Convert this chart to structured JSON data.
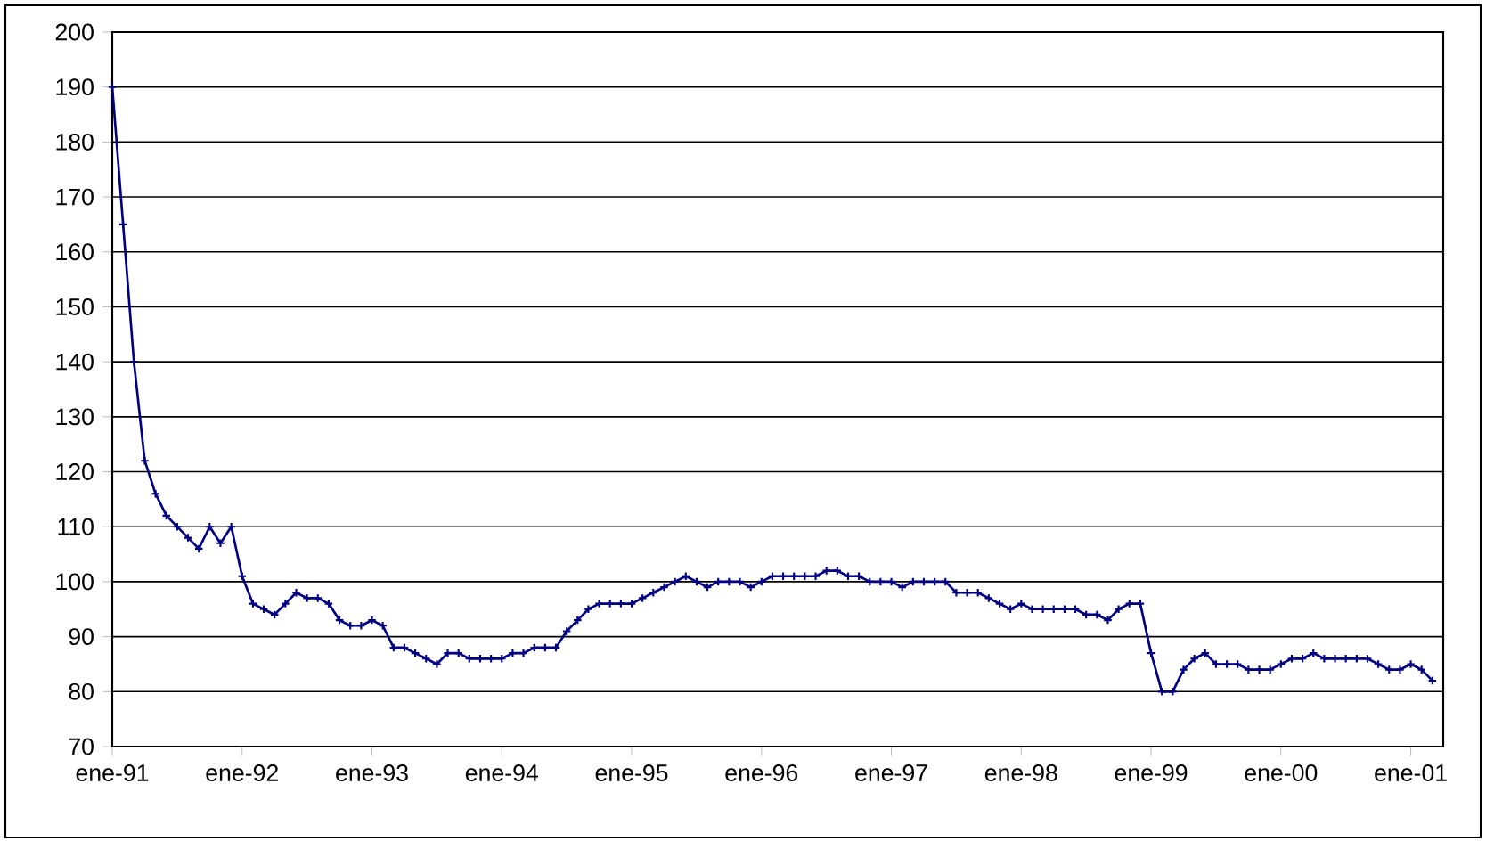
{
  "chart_data": {
    "type": "line",
    "grid": "y",
    "marker": "cross",
    "line_style": "solid",
    "xlim": [
      "1991-01",
      "2001-04"
    ],
    "ylim": [
      70,
      200
    ],
    "yticks": [
      70,
      80,
      90,
      100,
      110,
      120,
      130,
      140,
      150,
      160,
      170,
      180,
      190,
      200
    ],
    "xticks": [
      {
        "value": "1991-01",
        "label": "ene-91"
      },
      {
        "value": "1992-01",
        "label": "ene-92"
      },
      {
        "value": "1993-01",
        "label": "ene-93"
      },
      {
        "value": "1994-01",
        "label": "ene-94"
      },
      {
        "value": "1995-01",
        "label": "ene-95"
      },
      {
        "value": "1996-01",
        "label": "ene-96"
      },
      {
        "value": "1997-01",
        "label": "ene-97"
      },
      {
        "value": "1998-01",
        "label": "ene-98"
      },
      {
        "value": "1999-01",
        "label": "ene-99"
      },
      {
        "value": "2000-01",
        "label": "ene-00"
      },
      {
        "value": "2001-01",
        "label": "ene-01"
      }
    ],
    "x": [
      "1991-01",
      "1991-02",
      "1991-03",
      "1991-04",
      "1991-05",
      "1991-06",
      "1991-07",
      "1991-08",
      "1991-09",
      "1991-10",
      "1991-11",
      "1991-12",
      "1992-01",
      "1992-02",
      "1992-03",
      "1992-04",
      "1992-05",
      "1992-06",
      "1992-07",
      "1992-08",
      "1992-09",
      "1992-10",
      "1992-11",
      "1992-12",
      "1993-01",
      "1993-02",
      "1993-03",
      "1993-04",
      "1993-05",
      "1993-06",
      "1993-07",
      "1993-08",
      "1993-09",
      "1993-10",
      "1993-11",
      "1993-12",
      "1994-01",
      "1994-02",
      "1994-03",
      "1994-04",
      "1994-05",
      "1994-06",
      "1994-07",
      "1994-08",
      "1994-09",
      "1994-10",
      "1994-11",
      "1994-12",
      "1995-01",
      "1995-02",
      "1995-03",
      "1995-04",
      "1995-05",
      "1995-06",
      "1995-07",
      "1995-08",
      "1995-09",
      "1995-10",
      "1995-11",
      "1995-12",
      "1996-01",
      "1996-02",
      "1996-03",
      "1996-04",
      "1996-05",
      "1996-06",
      "1996-07",
      "1996-08",
      "1996-09",
      "1996-10",
      "1996-11",
      "1996-12",
      "1997-01",
      "1997-02",
      "1997-03",
      "1997-04",
      "1997-05",
      "1997-06",
      "1997-07",
      "1997-08",
      "1997-09",
      "1997-10",
      "1997-11",
      "1997-12",
      "1998-01",
      "1998-02",
      "1998-03",
      "1998-04",
      "1998-05",
      "1998-06",
      "1998-07",
      "1998-08",
      "1998-09",
      "1998-10",
      "1998-11",
      "1998-12",
      "1999-01",
      "1999-02",
      "1999-03",
      "1999-04",
      "1999-05",
      "1999-06",
      "1999-07",
      "1999-08",
      "1999-09",
      "1999-10",
      "1999-11",
      "1999-12",
      "2000-01",
      "2000-02",
      "2000-03",
      "2000-04",
      "2000-05",
      "2000-06",
      "2000-07",
      "2000-08",
      "2000-09",
      "2000-10",
      "2000-11",
      "2000-12",
      "2001-01",
      "2001-02",
      "2001-03"
    ],
    "series": [
      {
        "color": "#000080",
        "values": [
          190,
          165,
          140,
          122,
          116,
          112,
          110,
          108,
          106,
          110,
          107,
          110,
          101,
          96,
          95,
          94,
          96,
          98,
          97,
          97,
          96,
          93,
          92,
          92,
          93,
          92,
          88,
          88,
          87,
          86,
          85,
          87,
          87,
          86,
          86,
          86,
          86,
          87,
          87,
          88,
          88,
          88,
          91,
          93,
          95,
          96,
          96,
          96,
          96,
          97,
          98,
          99,
          100,
          101,
          100,
          99,
          100,
          100,
          100,
          99,
          100,
          101,
          101,
          101,
          101,
          101,
          102,
          102,
          101,
          101,
          100,
          100,
          100,
          99,
          100,
          100,
          100,
          100,
          98,
          98,
          98,
          97,
          96,
          95,
          96,
          95,
          95,
          95,
          95,
          95,
          94,
          94,
          93,
          95,
          96,
          96,
          87,
          80,
          80,
          84,
          86,
          87,
          85,
          85,
          85,
          84,
          84,
          84,
          85,
          86,
          86,
          87,
          86,
          86,
          86,
          86,
          86,
          85,
          84,
          84,
          85,
          84,
          82
        ]
      }
    ]
  }
}
